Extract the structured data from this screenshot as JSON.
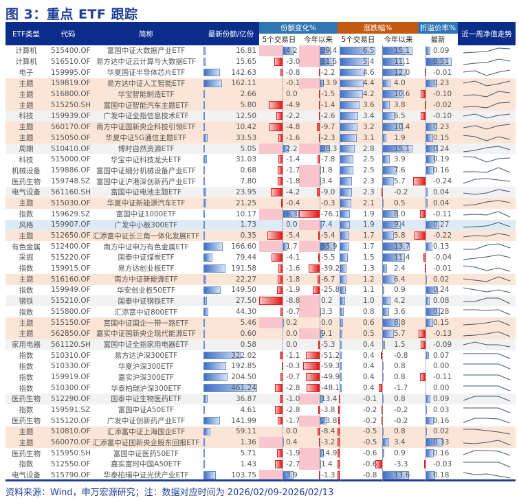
{
  "title": "图 3：重点 ETF 跟踪",
  "header": {
    "type": "ETF类型",
    "code": "代码",
    "name": "简称",
    "shares": "最新份额/亿份",
    "share_change": "份额变化%",
    "price_change": "涨跌幅%",
    "premium": "折溢价率%",
    "d5": "5个交易日",
    "ytd": "今年以来",
    "d5b": "5个交易日",
    "ytdb": "今年以来",
    "latest": "最新",
    "trend": "近一周净值走势"
  },
  "colors": {
    "navy": "#0a2d8c",
    "blue_group": "#2e75b6",
    "orange_group": "#c55a11",
    "theme_row": "#fbe5d6",
    "grey_row": "#f2f2f2",
    "style_row": "#ddebf7",
    "positive_bar": "#3f6fc4",
    "negative_bar": "#e31b1b"
  },
  "chart_data": {
    "type": "table",
    "columns": [
      "ETF类型",
      "代码",
      "简称",
      "最新份额/亿份",
      "份额变化% 5个交易日",
      "份额变化% 今年以来",
      "涨跌幅% 5个交易日",
      "涨跌幅% 今年以来",
      "折溢价率% 最新",
      "近一周净值走势"
    ],
    "rows": [
      {
        "type": "计算机",
        "code": "515400.OF",
        "name": "富国中证大数据产业ETF",
        "shares": "16.81",
        "s5": "4.2",
        "sytd": "39.4",
        "r5": "6.5",
        "rytd": "15.1",
        "prem": "0.09",
        "bg": "w",
        "trend": [
          0.2,
          0.3,
          0.4,
          0.9,
          0.8
        ]
      },
      {
        "type": "计算机",
        "code": "516510.OF",
        "name": "易方达中证云计算与大数据ETF",
        "shares": "15.65",
        "s5": "-3.0",
        "sytd": "51.5",
        "r5": "5.4",
        "rytd": "11.1",
        "prem": "0.51",
        "bg": "w",
        "trend": [
          0.1,
          0.3,
          0.4,
          0.9,
          0.6
        ]
      },
      {
        "type": "电子",
        "code": "159995.OF",
        "name": "华夏国证半导体芯片ETF",
        "shares": "142.63",
        "s5": "-0.8",
        "sytd": "-2.2",
        "r5": "4.6",
        "rytd": "12.0",
        "prem": "-0.01",
        "bg": "w",
        "trend": [
          0.6,
          0.8,
          0.1,
          0.6,
          0.9
        ]
      },
      {
        "type": "主题",
        "code": "159819.OF",
        "name": "易方达中证人工智能ETF",
        "shares": "162.11",
        "s5": "-0.1",
        "sytd": "13.9",
        "r5": "4.4",
        "rytd": "4.0",
        "prem": "0.23",
        "bg": "t",
        "trend": [
          0.6,
          0.9,
          0.2,
          0.5,
          0.9
        ]
      },
      {
        "type": "主题",
        "code": "516800.OF",
        "name": "华宝智能制造ETF",
        "shares": "2.66",
        "s5": "0.0",
        "sytd": "-1.5",
        "r5": "4.2",
        "rytd": "10.6",
        "prem": "-0.10",
        "bg": "t",
        "trend": [
          0.3,
          0.4,
          0.1,
          0.9,
          0.7
        ]
      },
      {
        "type": "主题",
        "code": "515250.SH",
        "name": "富国中证智能汽车主题ETF",
        "shares": "5.80",
        "s5": "-4.9",
        "sytd": "-1.4",
        "r5": "3.6",
        "rytd": "3.8",
        "prem": "-0.02",
        "bg": "t",
        "trend": [
          0.2,
          0.3,
          0.1,
          0.8,
          0.9
        ]
      },
      {
        "type": "科技",
        "code": "159939.OF",
        "name": "广发中证全指信息技术ETF",
        "shares": "12.50",
        "s5": "-2.2",
        "sytd": "-2.6",
        "r5": "3.4",
        "rytd": "6.5",
        "prem": "-0.10",
        "bg": "g",
        "trend": [
          0.5,
          0.8,
          0.2,
          0.6,
          0.8
        ]
      },
      {
        "type": "主题",
        "code": "560170.OF",
        "name": "南方中证国新央企科技引领ETF",
        "shares": "10.42",
        "s5": "-4.8",
        "sytd": "-9.7",
        "r5": "3.2",
        "rytd": "10.4",
        "prem": "0.23",
        "bg": "t",
        "trend": [
          0.4,
          0.7,
          0.2,
          0.7,
          0.9
        ]
      },
      {
        "type": "主题",
        "code": "515050.OF",
        "name": "华夏中证5G通信主题ETF",
        "shares": "33.53",
        "s5": "-1.6",
        "sytd": "-2.3",
        "r5": "3.1",
        "rytd": "1.9",
        "prem": "0.15",
        "bg": "t",
        "trend": [
          0.9,
          0.7,
          0.1,
          0.7,
          0.3
        ]
      },
      {
        "type": "周期",
        "code": "510410.OF",
        "name": "博时自然资源ETF",
        "shares": "5.05",
        "s5": "2.2",
        "sytd": "38.3",
        "r5": "2.8",
        "rytd": "15.1",
        "prem": "0.24",
        "bg": "g",
        "trend": [
          0.1,
          0.3,
          0.7,
          0.9,
          0.4
        ]
      },
      {
        "type": "科技",
        "code": "515000.OF",
        "name": "华宝中证科技龙头ETF",
        "shares": "31.03",
        "s5": "-1.4",
        "sytd": "-7.8",
        "r5": "2.5",
        "rytd": "3.9",
        "prem": "0.19",
        "bg": "w",
        "trend": [
          0.9,
          0.8,
          0.1,
          0.6,
          0.7
        ]
      },
      {
        "type": "机械设备",
        "code": "159886.OF",
        "name": "富国中证细分机械设备产业ETF",
        "shares": "0.68",
        "s5": "-1.7",
        "sytd": "1.8",
        "r5": "2.5",
        "rytd": "7.6",
        "prem": "0.16",
        "bg": "w",
        "trend": [
          0.3,
          0.3,
          0.2,
          0.9,
          0.2
        ]
      },
      {
        "type": "医药生物",
        "code": "159748.SZ",
        "name": "富国中证沪港深创新药产业ETF",
        "shares": "7.80",
        "s5": "-1.8",
        "sytd": "3.4",
        "r5": "2.3",
        "rytd": "5.7",
        "prem": "-0.24",
        "bg": "w",
        "trend": [
          0.2,
          0.8,
          0.9,
          0.7,
          0.5
        ]
      },
      {
        "type": "电气设备",
        "code": "561160.SH",
        "name": "富国中证电池主题ETF",
        "shares": "23.95",
        "s5": "-4.2",
        "sytd": "-9.0",
        "r5": "2.3",
        "rytd": "-0.2",
        "prem": "0.04",
        "bg": "g",
        "trend": [
          0.4,
          0.2,
          0.4,
          0.9,
          0.6
        ]
      },
      {
        "type": "主题",
        "code": "515030.OF",
        "name": "华夏中证新能源汽车ETF",
        "shares": "21.25",
        "s5": "-0.4",
        "sytd": "-0.3",
        "r5": "2.1",
        "rytd": "0.5",
        "prem": "0.04",
        "bg": "t",
        "trend": [
          0.2,
          0.3,
          0.7,
          0.9,
          0.6
        ]
      },
      {
        "type": "指数",
        "code": "159629.SZ",
        "name": "富国中证1000ETF",
        "shares": "10.17",
        "s5": "6.3",
        "sytd": "-76.1",
        "r5": "1.9",
        "rytd": "8.0",
        "prem": "-0.11",
        "bg": "w",
        "trend": [
          0.4,
          0.5,
          0.4,
          0.9,
          0.1
        ]
      },
      {
        "type": "风格",
        "code": "159907.OF",
        "name": "广发中小板300ETF",
        "shares": "1.73",
        "s5": "0.0",
        "sytd": "7.4",
        "r5": "1.9",
        "rytd": "9.4",
        "prem": "0.27",
        "bg": "b",
        "trend": [
          0.2,
          0.3,
          0.4,
          0.9,
          0.3
        ]
      },
      {
        "type": "主题",
        "code": "512650.OF",
        "name": "汇添富中证长三角一体化发展ETF",
        "shares": "0.35",
        "s5": "-5.4",
        "sytd": "-5.4",
        "r5": "1.7",
        "rytd": "5.8",
        "prem": "-0.22",
        "bg": "t",
        "trend": [
          0.3,
          0.5,
          0.4,
          0.8,
          0.5
        ]
      },
      {
        "type": "有色金属",
        "code": "512400.OF",
        "name": "南方中证申万有色金属ETF",
        "shares": "166.60",
        "s5": "1.7",
        "sytd": "55.9",
        "r5": "1.7",
        "rytd": "13.7",
        "prem": "0.13",
        "bg": "w",
        "trend": [
          0.1,
          0.1,
          0.7,
          0.9,
          0.3
        ]
      },
      {
        "type": "采掘",
        "code": "515220.OF",
        "name": "国泰中证煤炭ETF",
        "shares": "79.44",
        "s5": "-4.1",
        "sytd": "-5.5",
        "r5": "1.5",
        "rytd": "11.4",
        "prem": "-0.04",
        "bg": "w",
        "trend": [
          0.2,
          0.4,
          0.6,
          0.9,
          0.5
        ]
      },
      {
        "type": "指数",
        "code": "159915.OF",
        "name": "易方达创业板ETF",
        "shares": "191.58",
        "s5": "-1.6",
        "sytd": "-39.2",
        "r5": "1.3",
        "rytd": "2.4",
        "prem": "-0.01",
        "bg": "w",
        "trend": [
          0.9,
          0.7,
          0.2,
          0.6,
          0.1
        ]
      },
      {
        "type": "主题",
        "code": "516160.OF",
        "name": "南方中证新能源ETF",
        "shares": "22.27",
        "s5": "-1.8",
        "sytd": "-6.7",
        "r5": "1.2",
        "rytd": "6.4",
        "prem": "0.02",
        "bg": "t",
        "trend": [
          0.6,
          0.4,
          0.2,
          0.9,
          0.3
        ]
      },
      {
        "type": "指数",
        "code": "159949.OF",
        "name": "华安创业板50ETF",
        "shares": "149.50",
        "s5": "-1.9",
        "sytd": "-25.8",
        "r5": "1.1",
        "rytd": "0.9",
        "prem": "0.24",
        "bg": "w",
        "trend": [
          0.9,
          0.6,
          0.3,
          0.6,
          0.2
        ]
      },
      {
        "type": "钢铁",
        "code": "515210.OF",
        "name": "国泰中证钢铁ETF",
        "shares": "27.50",
        "s5": "-8.8",
        "sytd": "0.2",
        "r5": "1.0",
        "rytd": "4.2",
        "prem": "0.08",
        "bg": "g",
        "trend": [
          0.4,
          0.4,
          0.9,
          0.9,
          0.1
        ]
      },
      {
        "type": "指数",
        "code": "515800.OF",
        "name": "汇添富中证800ETF",
        "shares": "44.30",
        "s5": "-0.7",
        "sytd": "3.3",
        "r5": "0.8",
        "rytd": "3.6",
        "prem": "0.28",
        "bg": "w",
        "trend": [
          0.8,
          0.8,
          0.7,
          0.8,
          0.1
        ]
      },
      {
        "type": "主题",
        "code": "515150.OF",
        "name": "富国中证国企一带一路ETF",
        "shares": "5.46",
        "s5": "0.2",
        "sytd": "0.0",
        "r5": "0.6",
        "rytd": "8.8",
        "prem": "0.15",
        "bg": "t",
        "trend": [
          0.2,
          0.3,
          0.5,
          0.8,
          0.1
        ]
      },
      {
        "type": "主题",
        "code": "562850.OF",
        "name": "嘉实中证国新央企现代能源ETF",
        "shares": "0.60",
        "s5": "0.0",
        "sytd": "9.1",
        "r5": "0.5",
        "rytd": "5.7",
        "prem": "-0.13",
        "bg": "t",
        "trend": [
          0.2,
          0.3,
          0.5,
          0.8,
          0.1
        ]
      },
      {
        "type": "家用电器",
        "code": "561120.SH",
        "name": "富国中证全指家用电器ETF",
        "shares": "0.58",
        "s5": "0.0",
        "sytd": "-5.3",
        "r5": "0.4",
        "rytd": "1.5",
        "prem": "-0.09",
        "bg": "g",
        "trend": [
          0.5,
          0.9,
          0.5,
          0.5,
          0.2
        ]
      },
      {
        "type": "指数",
        "code": "510310.OF",
        "name": "易方达沪深300ETF",
        "shares": "322.02",
        "s5": "-1.1",
        "sytd": "-51.2",
        "r5": "0.4",
        "rytd": "-0.8",
        "prem": "0.07",
        "bg": "w",
        "trend": [
          0.8,
          0.8,
          0.8,
          0.8,
          0.1
        ]
      },
      {
        "type": "指数",
        "code": "510330.OF",
        "name": "华夏沪深300ETF",
        "shares": "192.85",
        "s5": "-0.3",
        "sytd": "-59.3",
        "r5": "0.4",
        "rytd": "0.8",
        "prem": "0.00",
        "bg": "w",
        "trend": [
          0.8,
          0.8,
          0.8,
          0.8,
          0.1
        ]
      },
      {
        "type": "指数",
        "code": "159919.OF",
        "name": "嘉实沪深300ETF",
        "shares": "204.50",
        "s5": "-0.7",
        "sytd": "-49.9",
        "r5": "0.4",
        "rytd": "0.8",
        "prem": "-0.11",
        "bg": "w",
        "trend": [
          0.8,
          0.8,
          0.8,
          0.8,
          0.1
        ]
      },
      {
        "type": "指数",
        "code": "510300.OF",
        "name": "华泰柏瑞沪深300ETF",
        "shares": "461.24",
        "s5": "-2.8",
        "sytd": "-48.1",
        "r5": "0.4",
        "rytd": "-1.7",
        "prem": "0.00",
        "bg": "w",
        "trend": [
          0.8,
          0.8,
          0.8,
          0.8,
          0.1
        ]
      },
      {
        "type": "医药生物",
        "code": "512290.OF",
        "name": "国泰中证生物医药ETF",
        "shares": "36.87",
        "s5": "-1.0",
        "sytd": "13.4",
        "r5": "-0.1",
        "rytd": "0.8",
        "prem": "0.09",
        "bg": "g",
        "trend": [
          0.3,
          0.9,
          0.9,
          0.9,
          0.2
        ]
      },
      {
        "type": "指数",
        "code": "159591.SZ",
        "name": "富国中证A50ETF",
        "shares": "4.61",
        "s5": "-2.8",
        "sytd": "-3.8",
        "r5": "-0.2",
        "rytd": "-0.2",
        "prem": "0.03",
        "bg": "w",
        "trend": [
          0.8,
          0.8,
          0.8,
          0.8,
          0.1
        ]
      },
      {
        "type": "医药生物",
        "code": "515120.OF",
        "name": "广发中证创新药产业ETF",
        "shares": "141.99",
        "s5": "-1.7",
        "sytd": "23.8",
        "r5": "-0.2",
        "rytd": "-0.2",
        "prem": "0.16",
        "bg": "w",
        "trend": [
          0.3,
          0.9,
          0.9,
          0.8,
          0.2
        ]
      },
      {
        "type": "主题",
        "code": "510810.OF",
        "name": "汇添富中证上海国企ETF",
        "shares": "59.11",
        "s5": "0.0",
        "sytd": "-8.4",
        "r5": "-0.5",
        "rytd": "0.8",
        "prem": "0.02",
        "bg": "t",
        "trend": [
          0.9,
          0.9,
          0.7,
          0.5,
          0.2
        ]
      },
      {
        "type": "主题",
        "code": "560070.OF",
        "name": "汇添富中证国新央企股东回报ETF",
        "shares": "1.36",
        "s5": "0.4",
        "sytd": "-3.2",
        "r5": "-0.5",
        "rytd": "3.4",
        "prem": "0.33",
        "bg": "t",
        "trend": [
          0.4,
          0.3,
          0.5,
          0.8,
          0.1
        ]
      },
      {
        "type": "医药生物",
        "code": "515950.SH",
        "name": "富国中证医药50ETF",
        "shares": "5.71",
        "s5": "-1.9",
        "sytd": "14.9",
        "r5": "-0.6",
        "rytd": "0.9",
        "prem": "0.16",
        "bg": "w",
        "trend": [
          0.3,
          0.9,
          0.9,
          0.8,
          0.2
        ]
      },
      {
        "type": "指数",
        "code": "512550.OF",
        "name": "嘉实富时中国A50ETF",
        "shares": "1.43",
        "s5": "-2.7",
        "sytd": "1.4",
        "r5": "-0.6",
        "rytd": "-3.3",
        "prem": "-0.03",
        "bg": "w",
        "trend": [
          0.8,
          0.8,
          0.8,
          0.8,
          0.1
        ]
      },
      {
        "type": "电气设备",
        "code": "515790.OF",
        "name": "华泰柏瑞中证光伏产业ETF",
        "shares": "103.75",
        "s5": "3.9",
        "sytd": "-1.3",
        "r5": "-0.8",
        "rytd": "13.6",
        "prem": "0.18",
        "bg": "w",
        "trend": [
          0.9,
          0.6,
          0.7,
          0.4,
          0.1
        ]
      }
    ]
  },
  "footer": "资料来源：Wind，申万宏源研究；注：数据对应时间为 2026/02/09-2026/02/13"
}
